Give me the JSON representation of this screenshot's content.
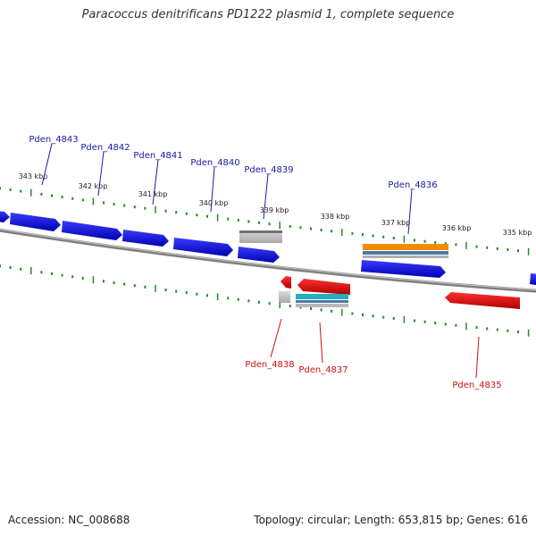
{
  "title": "Paracoccus denitrificans PD1222 plasmid 1, complete sequence",
  "footer": {
    "accession": "Accession: NC_008688",
    "summary": "Topology: circular; Length: 653,815 bp; Genes: 616"
  },
  "colors": {
    "forward_gene": "#0000ee",
    "reverse_gene": "#ee0000",
    "forward_label": "#1a1aa8",
    "reverse_label": "#cc1111",
    "tick": "#228b22",
    "backbone": "#808080",
    "pseudo": "#b0b0b0",
    "orange_feature": "#f08c00",
    "cyan_feature": "#20b0c0",
    "steel_feature": "#4a7aa8"
  },
  "scale_labels": [
    "343 kbp",
    "342 kbp",
    "341 kbp",
    "340 kbp",
    "339 kbp",
    "338 kbp",
    "337 kbp",
    "336 kbp",
    "335 kbp"
  ],
  "genes": [
    {
      "name": "Pden_4843",
      "strand": "forward"
    },
    {
      "name": "Pden_4842",
      "strand": "forward"
    },
    {
      "name": "Pden_4841",
      "strand": "forward"
    },
    {
      "name": "Pden_4840",
      "strand": "forward"
    },
    {
      "name": "Pden_4839",
      "strand": "forward"
    },
    {
      "name": "Pden_4836",
      "strand": "forward"
    },
    {
      "name": "Pden_4838",
      "strand": "reverse"
    },
    {
      "name": "Pden_4837",
      "strand": "reverse"
    },
    {
      "name": "Pden_4835",
      "strand": "reverse"
    }
  ]
}
